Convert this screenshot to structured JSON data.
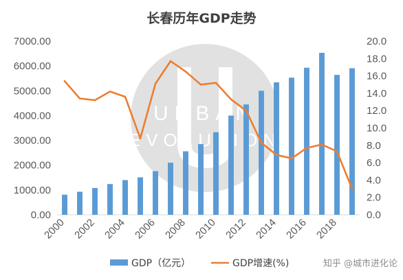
{
  "watermark": {
    "lines": [
      "URBAN",
      "EVOLUTION"
    ],
    "credit": "知乎 @城市进化论"
  },
  "colors": {
    "bar": "#5b9bd5",
    "line": "#ed7d31",
    "grid": "#d9d9d9",
    "text": "#595959"
  },
  "chart_data": {
    "type": "bar",
    "title": "长春历年GDP走势",
    "x": [
      2000,
      2001,
      2002,
      2003,
      2004,
      2005,
      2006,
      2007,
      2008,
      2009,
      2010,
      2011,
      2012,
      2013,
      2014,
      2015,
      2016,
      2017,
      2018,
      2019
    ],
    "x_tick_labels": [
      "2000",
      "2002",
      "2004",
      "2006",
      "2008",
      "2010",
      "2012",
      "2014",
      "2016",
      "2018"
    ],
    "series": [
      {
        "name": "GDP（亿元）",
        "type": "bar",
        "axis": "left",
        "values": [
          810,
          930,
          1080,
          1240,
          1400,
          1510,
          1760,
          2100,
          2560,
          2850,
          3330,
          4000,
          4450,
          5000,
          5340,
          5530,
          5930,
          6530,
          5640,
          5910
        ]
      },
      {
        "name": "GDP增速(%)",
        "type": "line",
        "axis": "right",
        "values": [
          15.4,
          13.4,
          13.2,
          14.2,
          13.6,
          8.8,
          15.1,
          17.7,
          16.5,
          15.0,
          15.2,
          13.3,
          12.0,
          8.3,
          6.9,
          6.5,
          7.7,
          8.1,
          7.3,
          3.0
        ]
      }
    ],
    "y_left": {
      "min": 0,
      "max": 7000,
      "step": 1000,
      "decimals": 2
    },
    "y_right": {
      "min": 0,
      "max": 20,
      "step": 2,
      "decimals": 1
    },
    "grid": false,
    "legend_position": "bottom"
  }
}
